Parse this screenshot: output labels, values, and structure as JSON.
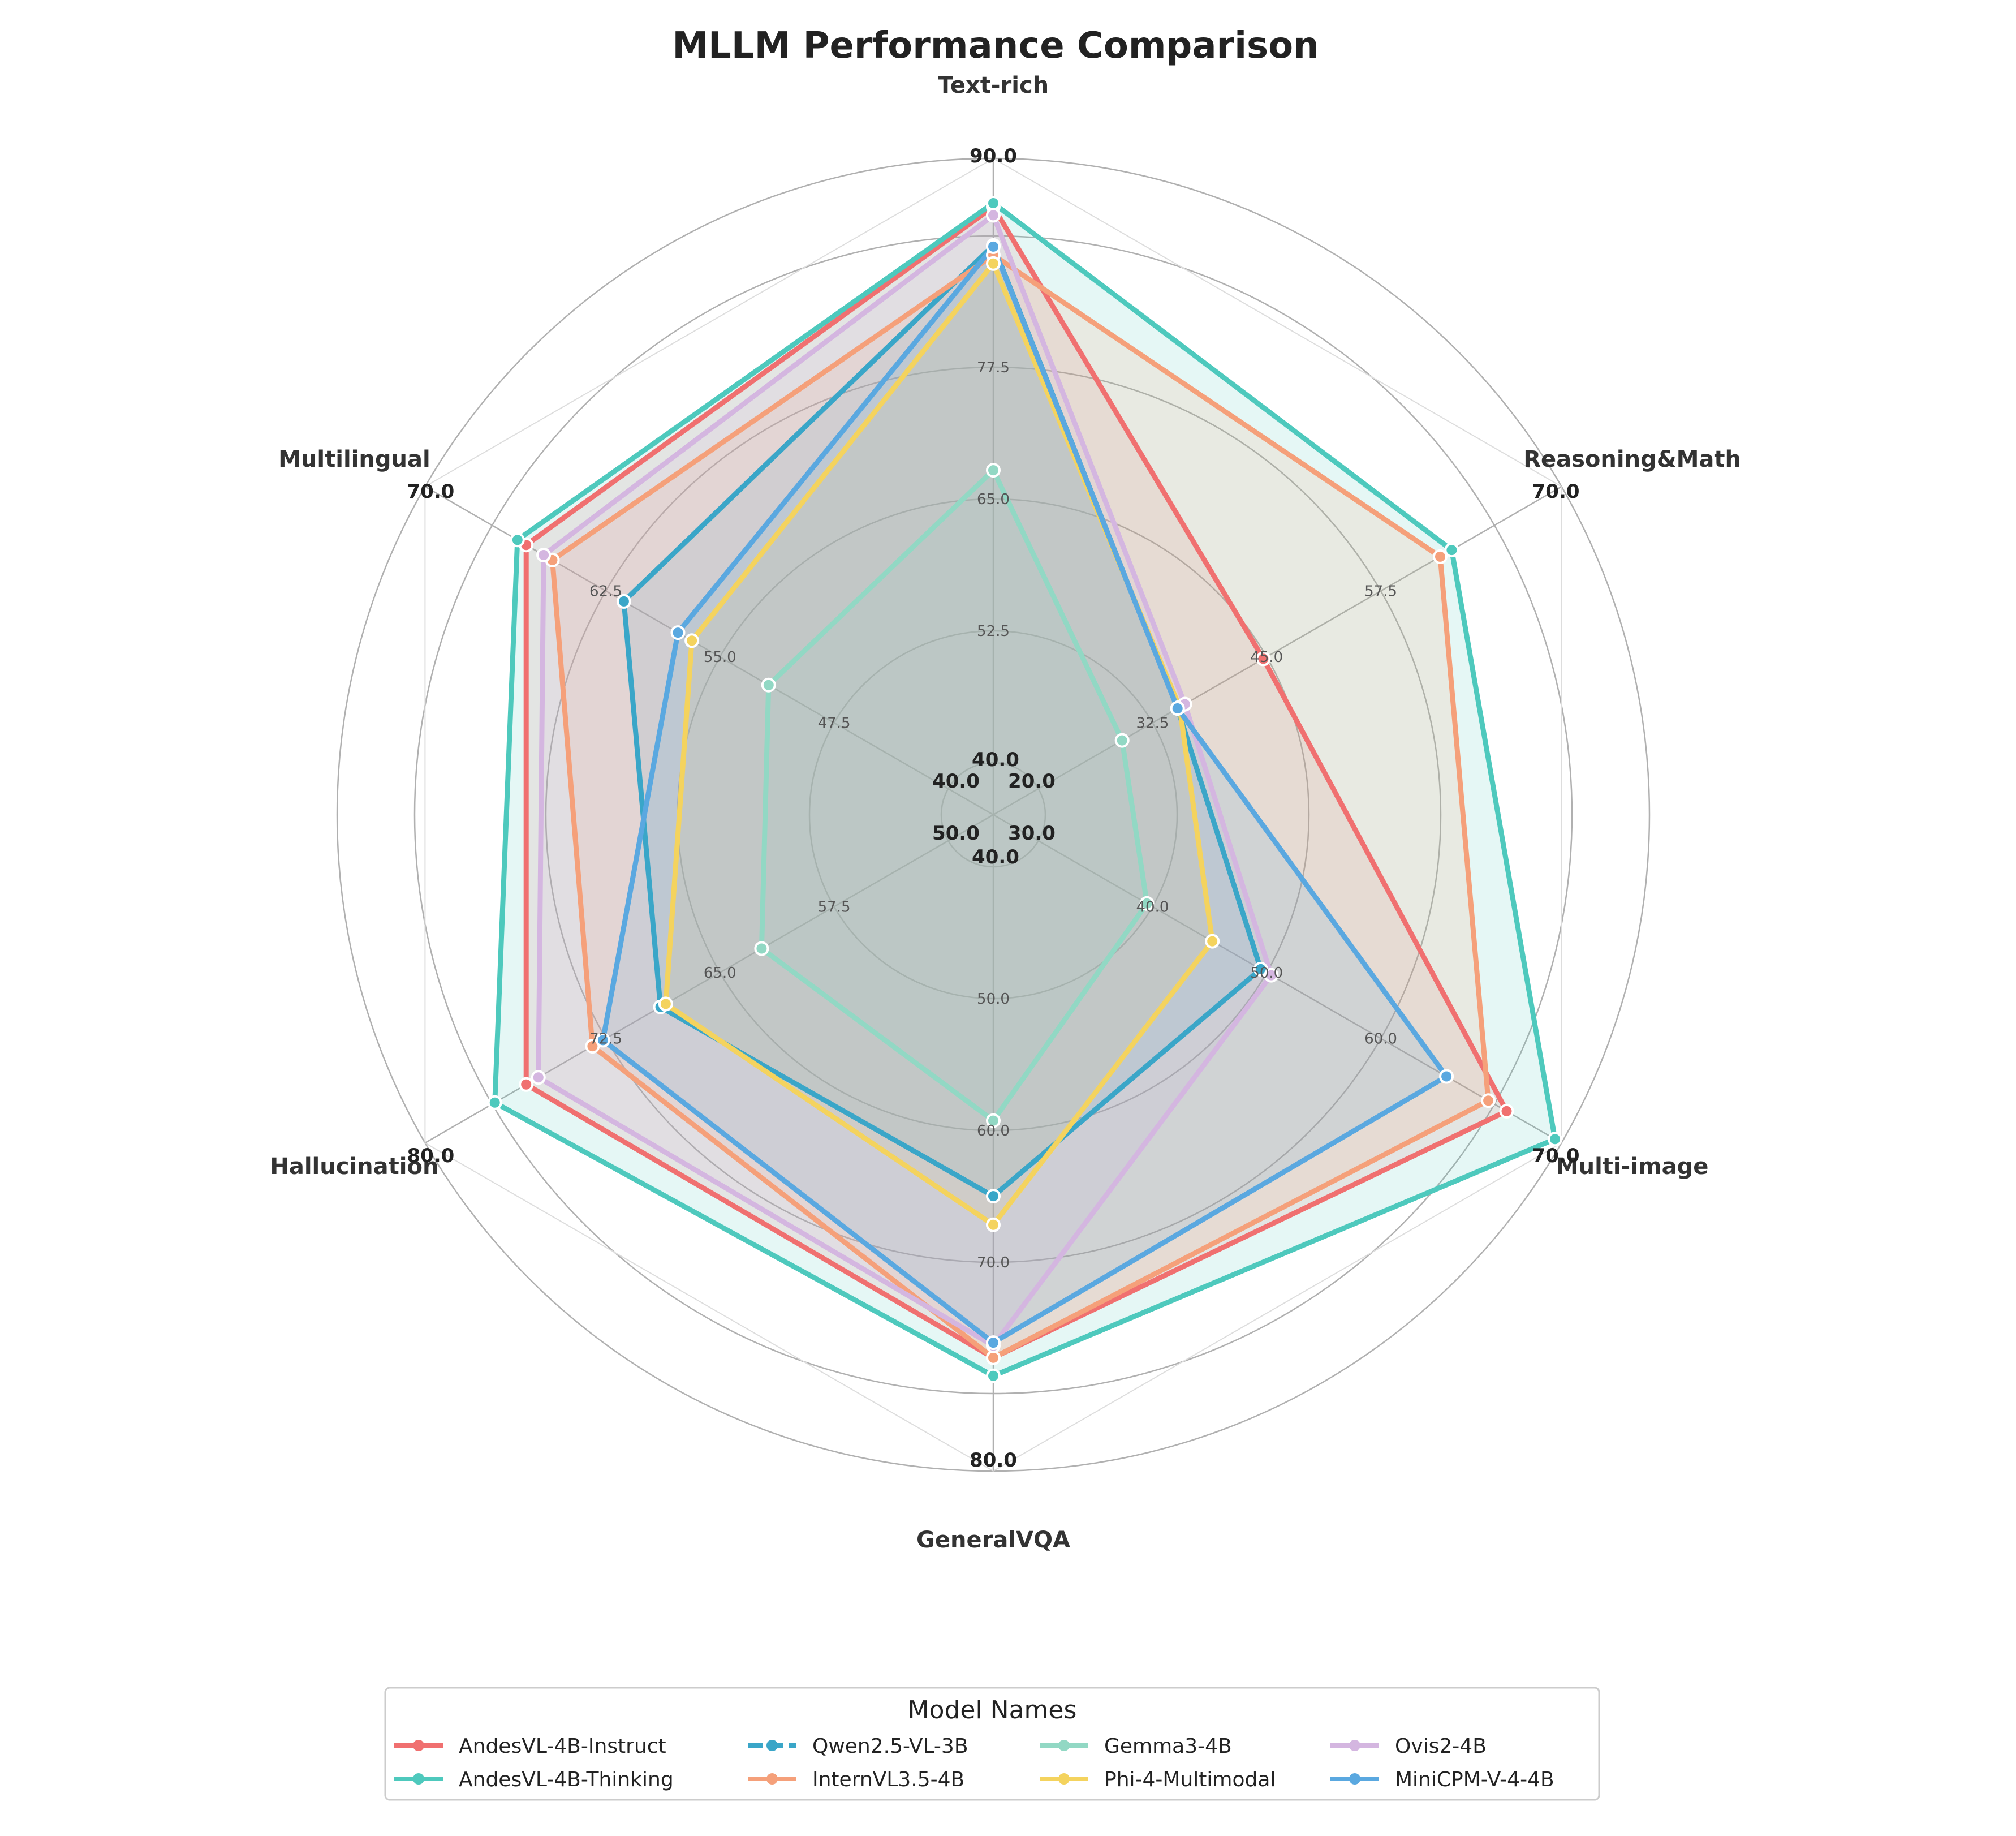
{
  "chart_data": {
    "type": "radar",
    "title": "MLLM Performance Comparison",
    "axes": [
      {
        "name": "Text-rich",
        "min": 40.0,
        "max": 90.0,
        "ticks": [
          "52.5",
          "65.0",
          "77.5"
        ],
        "min_label": "40.0",
        "max_label": "90.0"
      },
      {
        "name": "Reasoning&Math",
        "min": 20.0,
        "max": 70.0,
        "ticks": [
          "32.5",
          "45.0",
          "57.5"
        ],
        "min_label": "20.0",
        "max_label": "70.0"
      },
      {
        "name": "Multi-image",
        "min": 30.0,
        "max": 70.0,
        "ticks": [
          "40.0",
          "50.0",
          "60.0"
        ],
        "min_label": "30.0",
        "max_label": "70.0"
      },
      {
        "name": "GeneralVQA",
        "min": 40.0,
        "max": 80.0,
        "ticks": [
          "50.0",
          "60.0",
          "70.0"
        ],
        "min_label": "40.0",
        "max_label": "80.0"
      },
      {
        "name": "Hallucination",
        "min": 50.0,
        "max": 80.0,
        "ticks": [
          "57.5",
          "65.0",
          "72.5"
        ],
        "min_label": "50.0",
        "max_label": "80.0"
      },
      {
        "name": "Multilingual",
        "min": 40.0,
        "max": 70.0,
        "ticks": [
          "47.5",
          "55.0",
          "62.5"
        ],
        "min_label": "40.0",
        "max_label": "70.0"
      }
    ],
    "series": [
      {
        "name": "AndesVL-4B-Instruct",
        "color": "#f07070",
        "dashed": false,
        "values": [
          86.0,
          41.5,
          65.8,
          72.5,
          74.2,
          64.2
        ]
      },
      {
        "name": "AndesVL-4B-Thinking",
        "color": "#4ec9bd",
        "dashed": false,
        "values": [
          86.3,
          59.5,
          69.5,
          73.7,
          76.0,
          64.7
        ]
      },
      {
        "name": "Qwen2.5-VL-3B",
        "color": "#3aa6c8",
        "dashed": true,
        "values": [
          82.8,
          33.3,
          47.0,
          61.8,
          66.5,
          58.6
        ]
      },
      {
        "name": "InternVL3.5-4B",
        "color": "#f5a07a",
        "dashed": false,
        "values": [
          82.0,
          58.4,
          64.4,
          72.5,
          70.4,
          62.7
        ]
      },
      {
        "name": "Gemma3-4B",
        "color": "#92d8c4",
        "dashed": false,
        "values": [
          64.2,
          28.0,
          38.3,
          56.8,
          60.7,
          50.3
        ]
      },
      {
        "name": "Phi-4-Multimodal",
        "color": "#f4d35e",
        "dashed": false,
        "values": [
          81.3,
          33.5,
          43.3,
          63.7,
          66.2,
          54.7
        ]
      },
      {
        "name": "Ovis2-4B",
        "color": "#d4b6e0",
        "dashed": false,
        "values": [
          85.3,
          34.0,
          47.8,
          71.7,
          73.5,
          63.2
        ]
      },
      {
        "name": "MiniCPM-V-4-4B",
        "color": "#5aa8e0",
        "dashed": false,
        "values": [
          82.7,
          33.3,
          61.2,
          71.5,
          69.8,
          55.5
        ]
      }
    ],
    "legend": {
      "title": "Model Names",
      "placement": "bottom-center",
      "columns": 4
    }
  }
}
